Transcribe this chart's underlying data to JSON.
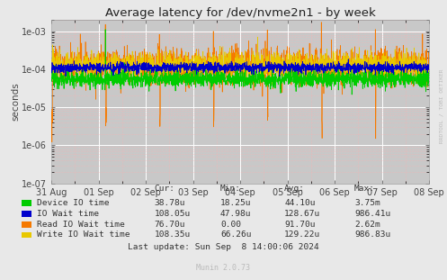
{
  "title": "Average latency for /dev/nvme2n1 - by week",
  "ylabel": "seconds",
  "bg_color": "#e8e8e8",
  "plot_bg_color": "#c8c8c8",
  "grid_major_color": "#ffffff",
  "grid_minor_color": "#ffb0b0",
  "x_ticks_labels": [
    "31 Aug",
    "01 Sep",
    "02 Sep",
    "03 Sep",
    "04 Sep",
    "05 Sep",
    "06 Sep",
    "07 Sep",
    "08 Sep"
  ],
  "ylim_min": 1e-07,
  "ylim_max": 0.002,
  "legend_entries": [
    {
      "label": "Device IO time",
      "color": "#00cc00"
    },
    {
      "label": "IO Wait time",
      "color": "#0000cc"
    },
    {
      "label": "Read IO Wait time",
      "color": "#f57900"
    },
    {
      "label": "Write IO Wait time",
      "color": "#e8c800"
    }
  ],
  "legend_data": [
    [
      "38.78u",
      "18.25u",
      "44.10u",
      "3.75m"
    ],
    [
      "108.05u",
      "47.98u",
      "128.67u",
      "986.41u"
    ],
    [
      "76.70u",
      "0.00",
      "91.70u",
      "2.62m"
    ],
    [
      "108.35u",
      "66.26u",
      "129.22u",
      "986.83u"
    ]
  ],
  "last_update": "Last update: Sun Sep  8 14:00:06 2024",
  "munin_label": "Munin 2.0.73",
  "watermark": "RRDTOOL / TOBI OETIKER"
}
